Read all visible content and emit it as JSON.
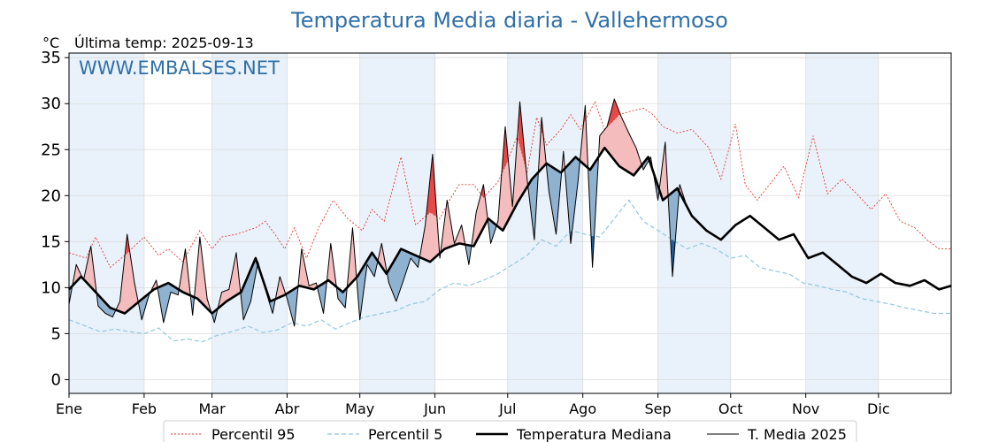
{
  "chart_data": {
    "type": "line",
    "title": "Temperatura Media diaria - Vallehermoso",
    "unit": "°C",
    "last_reading": "Última temp: 2025-09-13",
    "watermark": "WWW.EMBALSES.NET",
    "ylim": [
      -1.5,
      35.5
    ],
    "yticks": [
      0,
      5,
      10,
      15,
      20,
      25,
      30,
      35
    ],
    "months": [
      "Ene",
      "Feb",
      "Mar",
      "Abr",
      "May",
      "Jun",
      "Jul",
      "Ago",
      "Sep",
      "Oct",
      "Nov",
      "Dic"
    ],
    "grid": true,
    "shaded_months": [
      "Ene",
      "Mar",
      "May",
      "Jul",
      "Sep",
      "Nov"
    ],
    "legend_position": "bottom",
    "colors": {
      "p95": "#e8382e",
      "p5": "#8ec7df",
      "median": "#000000",
      "current": "#000000",
      "above_fill": "#f4bcbc",
      "above_strong": "#e84848",
      "below_fill": "#8fb2d1",
      "below_strong": "#1f5f9f",
      "shade": "#e9f1fa"
    },
    "series": [
      {
        "name": "Percentil 95",
        "style": "dotted-red",
        "x": [
          1,
          8,
          12,
          18,
          24,
          32,
          38,
          42,
          48,
          55,
          60,
          64,
          70,
          78,
          82,
          86,
          90,
          94,
          99,
          104,
          110,
          116,
          122,
          126,
          131,
          138,
          144,
          150,
          154,
          158,
          162,
          168,
          172,
          178,
          182,
          186,
          190,
          194,
          198,
          204,
          208,
          212,
          218,
          222,
          228,
          233,
          238,
          242,
          246,
          252,
          258,
          265,
          270,
          276,
          280,
          285,
          290,
          296,
          302,
          308,
          314,
          320,
          326,
          332,
          338,
          344,
          350,
          355,
          360,
          365
        ],
        "values": [
          13.8,
          13.2,
          15.5,
          12.2,
          13.5,
          15.5,
          13.5,
          14.2,
          12.8,
          16.2,
          14.2,
          15.5,
          15.8,
          16.5,
          17.2,
          15.8,
          14.2,
          16.5,
          13.2,
          16.5,
          19.5,
          17.5,
          16.2,
          18.5,
          17.2,
          24.2,
          16.8,
          18.2,
          17.5,
          19.5,
          21.2,
          21.2,
          19.8,
          21.5,
          23.8,
          26.5,
          22.5,
          28.5,
          25.5,
          27.2,
          28.8,
          27.2,
          30.2,
          27.2,
          28.8,
          29.2,
          29.5,
          28.8,
          27.5,
          26.8,
          27.2,
          25.2,
          21.8,
          27.8,
          21.2,
          19.5,
          21.2,
          23.2,
          19.8,
          26.5,
          20.2,
          21.8,
          20.2,
          18.5,
          20.2,
          17.2,
          16.5,
          15.2,
          14.2,
          14.2
        ]
      },
      {
        "name": "Percentil 5",
        "style": "dashed-lightblue",
        "x": [
          1,
          8,
          14,
          20,
          26,
          32,
          38,
          44,
          50,
          56,
          62,
          68,
          75,
          81,
          87,
          93,
          99,
          105,
          111,
          117,
          123,
          130,
          136,
          142,
          148,
          154,
          160,
          166,
          172,
          178,
          184,
          190,
          196,
          202,
          208,
          214,
          220,
          226,
          232,
          238,
          244,
          250,
          256,
          262,
          268,
          274,
          280,
          286,
          292,
          298,
          304,
          310,
          316,
          322,
          328,
          334,
          340,
          346,
          352,
          358,
          365
        ],
        "values": [
          6.5,
          5.8,
          5.2,
          5.5,
          5.2,
          5.0,
          5.6,
          4.2,
          4.4,
          4.1,
          4.8,
          5.2,
          5.8,
          5.1,
          5.4,
          6.2,
          5.8,
          6.5,
          5.5,
          6.2,
          6.8,
          7.2,
          7.5,
          8.2,
          8.5,
          9.8,
          10.5,
          10.2,
          10.8,
          11.5,
          12.5,
          13.5,
          15.2,
          14.5,
          16.2,
          15.8,
          15.5,
          17.5,
          19.5,
          17.2,
          16.2,
          15.2,
          14.2,
          14.8,
          14.2,
          13.2,
          13.5,
          12.2,
          11.8,
          11.5,
          10.5,
          10.2,
          9.8,
          9.5,
          8.8,
          8.5,
          8.2,
          7.8,
          7.5,
          7.2,
          7.2
        ]
      },
      {
        "name": "Temperatura Mediana",
        "style": "thick-black",
        "x": [
          1,
          6,
          12,
          18,
          24,
          30,
          36,
          42,
          48,
          54,
          60,
          66,
          72,
          78,
          84,
          90,
          96,
          102,
          108,
          114,
          120,
          126,
          132,
          138,
          144,
          150,
          156,
          162,
          168,
          174,
          180,
          186,
          192,
          198,
          204,
          210,
          216,
          222,
          228,
          234,
          240,
          246,
          252,
          258,
          264,
          270,
          276,
          282,
          288,
          294,
          300,
          306,
          312,
          318,
          324,
          330,
          336,
          342,
          348,
          354,
          360,
          365
        ],
        "values": [
          9.8,
          11.2,
          9.5,
          7.8,
          7.2,
          8.5,
          9.8,
          10.5,
          9.5,
          8.8,
          7.2,
          8.5,
          9.5,
          13.2,
          8.5,
          9.2,
          10.2,
          9.8,
          10.8,
          9.5,
          11.2,
          13.8,
          11.5,
          14.2,
          13.5,
          12.8,
          14.2,
          14.8,
          14.5,
          17.5,
          16.2,
          19.2,
          21.8,
          23.5,
          22.5,
          24.2,
          22.8,
          25.2,
          23.2,
          22.2,
          24.2,
          19.5,
          20.8,
          17.8,
          16.2,
          15.2,
          16.8,
          17.8,
          16.5,
          15.2,
          15.8,
          13.2,
          13.8,
          12.5,
          11.2,
          10.5,
          11.5,
          10.5,
          10.2,
          10.8,
          9.8,
          10.2
        ]
      },
      {
        "name": "T. Media 2025",
        "style": "thin-black",
        "x": [
          1,
          4,
          7,
          10,
          13,
          16,
          19,
          22,
          25,
          28,
          31,
          34,
          37,
          40,
          43,
          46,
          49,
          52,
          55,
          58,
          61,
          64,
          67,
          70,
          73,
          76,
          79,
          82,
          85,
          88,
          91,
          94,
          97,
          100,
          103,
          106,
          109,
          112,
          115,
          118,
          121,
          124,
          127,
          130,
          133,
          136,
          139,
          142,
          145,
          148,
          151,
          154,
          157,
          160,
          163,
          166,
          169,
          172,
          175,
          178,
          181,
          184,
          187,
          190,
          193,
          196,
          199,
          202,
          205,
          208,
          211,
          214,
          217,
          220,
          223,
          226,
          229,
          232,
          235,
          238,
          241,
          244,
          247,
          250,
          253,
          256
        ],
        "values": [
          8.2,
          12.5,
          10.8,
          14.5,
          8.0,
          7.2,
          6.8,
          8.5,
          15.8,
          10.5,
          6.5,
          9.2,
          10.8,
          6.2,
          9.5,
          9.2,
          14.2,
          7.0,
          15.5,
          8.8,
          6.2,
          9.5,
          9.8,
          13.8,
          6.5,
          8.5,
          12.8,
          9.8,
          7.2,
          11.2,
          8.8,
          5.8,
          14.2,
          10.2,
          10.5,
          7.2,
          14.8,
          8.8,
          7.8,
          16.5,
          6.5,
          12.5,
          11.2,
          14.8,
          10.5,
          8.5,
          10.8,
          13.2,
          12.2,
          16.8,
          24.5,
          13.2,
          19.5,
          14.8,
          16.8,
          12.5,
          18.2,
          21.2,
          14.8,
          17.2,
          27.5,
          18.8,
          30.2,
          21.8,
          15.2,
          28.5,
          20.5,
          15.8,
          24.8,
          14.8,
          21.5,
          29.8,
          12.2,
          26.5,
          27.5,
          30.5,
          28.5,
          26.8,
          25.2,
          22.8,
          24.2,
          19.5,
          25.8,
          11.2,
          21.2,
          18.8
        ]
      }
    ]
  }
}
